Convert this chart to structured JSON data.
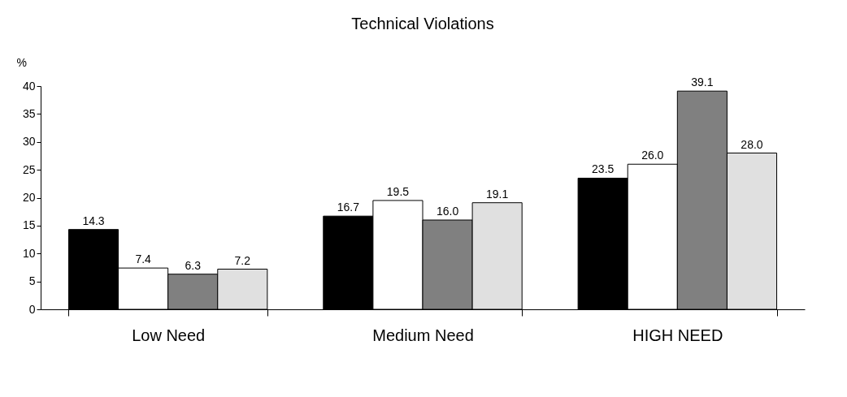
{
  "chart_data": {
    "type": "bar",
    "title": "Technical Violations",
    "ylabel": "%",
    "categories": [
      "Low Need",
      "Medium Need",
      "HIGH NEED"
    ],
    "series": [
      {
        "color": "#000000",
        "values": [
          14.3,
          16.7,
          23.5
        ],
        "value_labels": [
          "14.3",
          "16.7",
          "23.5"
        ]
      },
      {
        "color": "#ffffff",
        "values": [
          7.4,
          19.5,
          26.0
        ],
        "value_labels": [
          "7.4",
          "19.5",
          "26.0"
        ]
      },
      {
        "color": "#808080",
        "values": [
          6.3,
          16.0,
          39.1
        ],
        "value_labels": [
          "6.3",
          "16.0",
          "39.1"
        ]
      },
      {
        "color": "#e0e0e0",
        "values": [
          7.2,
          19.1,
          28.0
        ],
        "value_labels": [
          "7.2",
          "19.1",
          "28.0"
        ]
      }
    ],
    "ylim": [
      0,
      40
    ],
    "yticks": [
      0,
      5,
      10,
      15,
      20,
      25,
      30,
      35,
      40
    ],
    "grid": false,
    "legend": false
  }
}
